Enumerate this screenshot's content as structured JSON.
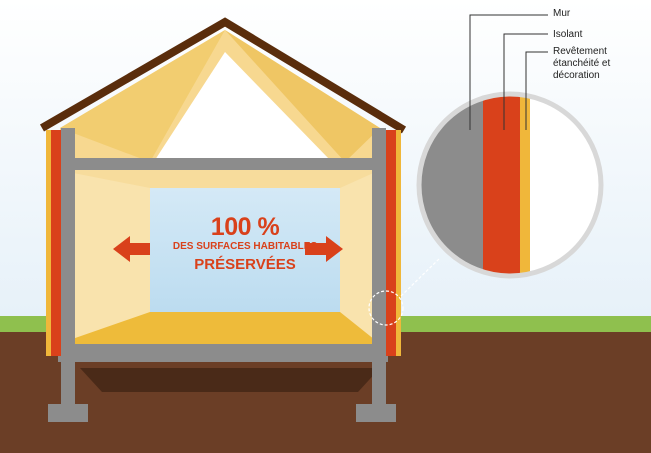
{
  "callouts": {
    "wall": "Mur",
    "insulation": "Isolant",
    "cladding": "Revêtement étanchéité et décoration"
  },
  "headline": {
    "percent": "100 %",
    "line1": "DES SURFACES HABITABLES",
    "line2": "PRÉSERVÉES"
  },
  "colors": {
    "insulation": "#d9411b",
    "wall": "#8c8c8c",
    "cladding": "#f0b73a",
    "roof": "#5a2d0c",
    "ground": "#6b3e26",
    "grass": "#8fc04e",
    "interior": "#f7dc9c"
  }
}
